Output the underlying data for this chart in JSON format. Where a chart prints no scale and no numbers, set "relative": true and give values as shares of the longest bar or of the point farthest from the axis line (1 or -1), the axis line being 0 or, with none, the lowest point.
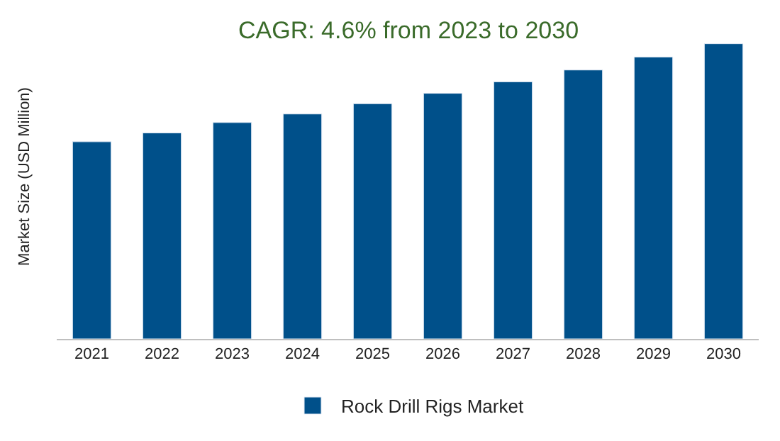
{
  "chart_data": {
    "type": "bar",
    "title": "CAGR: 4.6% from 2023 to 2030",
    "ylabel": "Market Size (USD Million)",
    "categories": [
      "2021",
      "2022",
      "2023",
      "2024",
      "2025",
      "2026",
      "2027",
      "2028",
      "2029",
      "2030"
    ],
    "series": [
      {
        "name": "Rock Drill Rigs Market",
        "color": "#00508a",
        "values": [
          0.668,
          0.698,
          0.733,
          0.762,
          0.797,
          0.832,
          0.871,
          0.911,
          0.955,
          1
        ]
      }
    ],
    "relative": true,
    "legend": "bottom"
  }
}
